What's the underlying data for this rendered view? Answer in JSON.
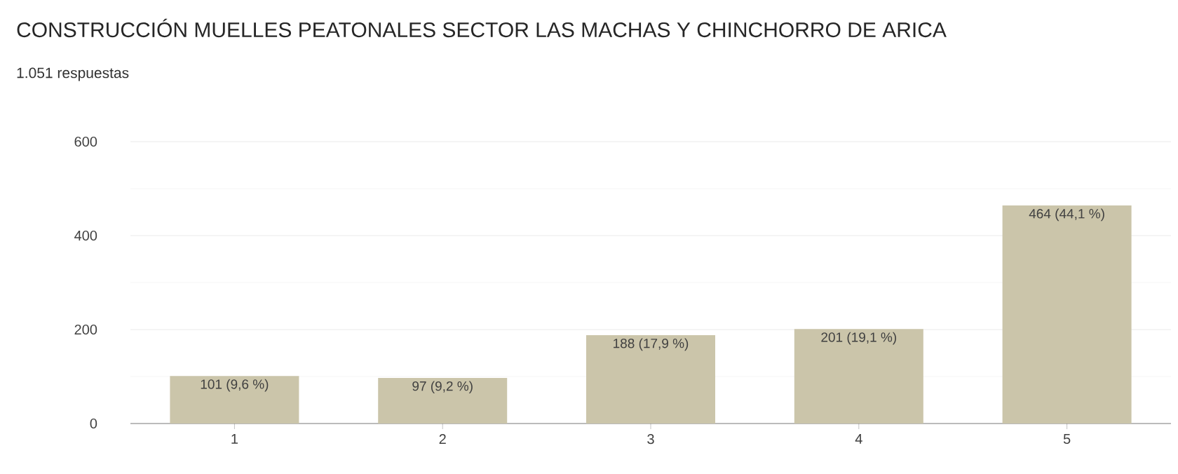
{
  "chart_data": {
    "type": "bar",
    "title": "CONSTRUCCIÓN MUELLES PEATONALES SECTOR LAS MACHAS Y CHINCHORRO DE ARICA",
    "subtitle": "1.051 respuestas",
    "categories": [
      "1",
      "2",
      "3",
      "4",
      "5"
    ],
    "values": [
      101,
      97,
      188,
      201,
      464
    ],
    "value_labels": [
      "101 (9,6 %)",
      "97 (9,2 %)",
      "188 (17,9 %)",
      "201 (19,1 %)",
      "464 (44,1 %)"
    ],
    "color": "#cbc5aa",
    "ylim": [
      0,
      600
    ],
    "yticks": [
      0,
      200,
      400,
      600
    ],
    "grid": "y"
  }
}
